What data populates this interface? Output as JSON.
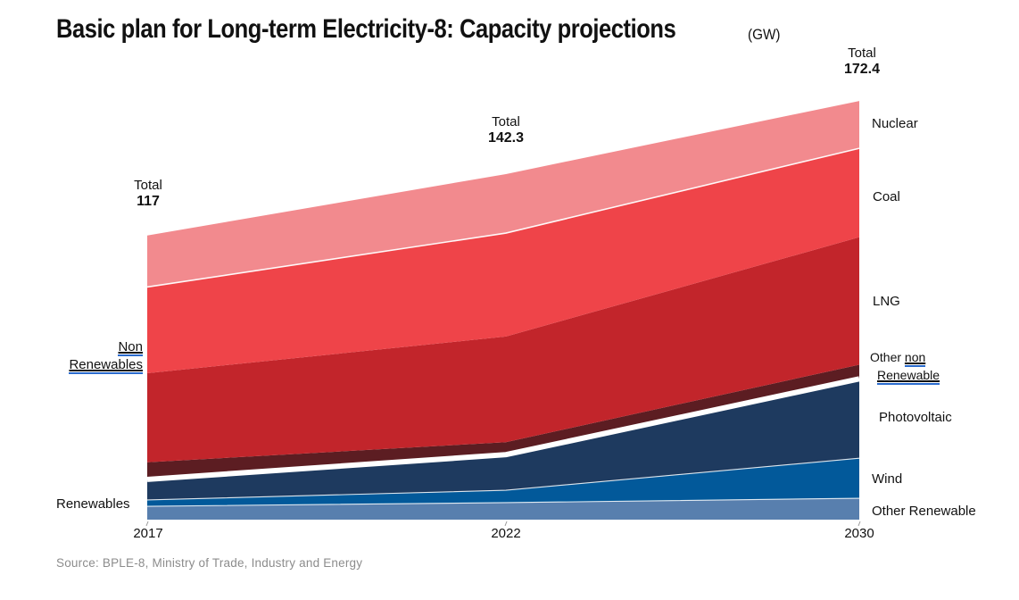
{
  "title": {
    "text": "Basic plan for Long-term Electricity-8: Capacity projections",
    "unit": "(GW)"
  },
  "totals": [
    {
      "label": "Total",
      "value": "117"
    },
    {
      "label": "Total",
      "value": "142.3"
    },
    {
      "label": "Total",
      "value": "172.4"
    }
  ],
  "side_labels": {
    "non_renewables_line1": "Non",
    "non_renewables_line2": "Renewables",
    "renewables": "Renewables",
    "other_word": "Other",
    "non_word": "non",
    "renewable_word": "Renewable"
  },
  "source": "Source: BPLE-8, Ministry of Trade, Industry and Energy",
  "chart_data": {
    "type": "area",
    "stacked": true,
    "x": [
      "2017",
      "2022",
      "2030"
    ],
    "totals": [
      117,
      142.3,
      172.4
    ],
    "ylabel": "GW",
    "ylim": [
      0,
      180
    ],
    "legend_position": "right",
    "grid": false,
    "gap_between_groups": "non-renewables / renewables separated by white band",
    "series": [
      {
        "name": "Nuclear",
        "group": "non-renewable",
        "values": [
          21.2,
          24.3,
          19.5
        ],
        "color": "#F28A8E"
      },
      {
        "name": "Coal",
        "group": "non-renewable",
        "values": [
          35.5,
          42.6,
          36.6
        ],
        "color": "#EF4449"
      },
      {
        "name": "LNG",
        "group": "non-renewable",
        "values": [
          36.7,
          43.5,
          52.5
        ],
        "color": "#C2252B"
      },
      {
        "name": "Other non Renewable",
        "group": "non-renewable",
        "values": [
          7.4,
          5.5,
          6.2
        ],
        "color": "#5C1D22"
      },
      {
        "name": "Photovoltaic",
        "group": "renewable",
        "values": [
          8.1,
          14.3,
          32.3
        ],
        "color": "#1E3A5F"
      },
      {
        "name": "Wind",
        "group": "renewable",
        "values": [
          2.6,
          5.1,
          16.5
        ],
        "color": "#02599A"
      },
      {
        "name": "Other Renewable",
        "group": "renewable",
        "values": [
          5.5,
          7.0,
          8.8
        ],
        "color": "#587FAE"
      }
    ]
  }
}
